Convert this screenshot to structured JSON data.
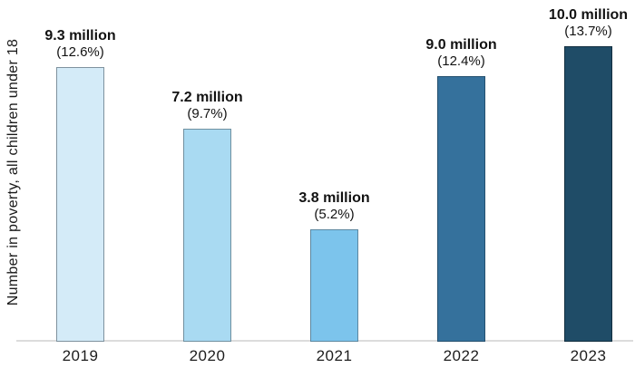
{
  "chart_data": {
    "type": "bar",
    "title": "",
    "xlabel": "",
    "ylabel": "Number in poverty, all children under 18",
    "unit": "million",
    "categories": [
      "2019",
      "2020",
      "2021",
      "2022",
      "2023"
    ],
    "values": [
      9.3,
      7.2,
      3.8,
      9.0,
      10.0
    ],
    "percentages": [
      12.6,
      9.7,
      5.2,
      12.4,
      13.7
    ],
    "value_labels": [
      "9.3 million",
      "7.2 million",
      "3.8 million",
      "9.0 million",
      "10.0 million"
    ],
    "percent_labels": [
      "(12.6%)",
      "(9.7%)",
      "(5.2%)",
      "(12.4%)",
      "(13.7%)"
    ],
    "bar_colors": [
      "#d4ebf8",
      "#a9daf2",
      "#7cc4ec",
      "#35719c",
      "#1f4c67"
    ],
    "bar_border_colors": [
      "#7e929e",
      "#7090a0",
      "#5c87a0",
      "#25506f",
      "#122e3f"
    ],
    "axis_line_color": "#dcdcdc",
    "ylim": [
      0,
      10.6
    ],
    "grid": false,
    "legend": false
  }
}
